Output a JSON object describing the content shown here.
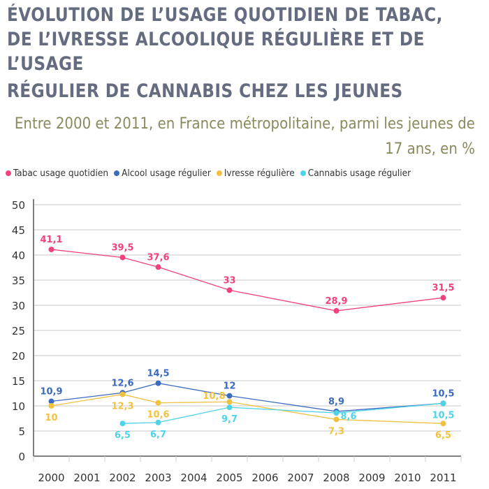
{
  "title_lines": [
    "ÉVOLUTION DE L’USAGE QUOTIDIEN DE TABAC,",
    "DE L’IVRESSE ALCOOLIQUE RÉGULIÈRE ET DE",
    "L’USAGE",
    "RÉGULIER DE CANNABIS CHEZ LES JEUNES"
  ],
  "subtitle": "Entre 2000 et 2011, en France métropolitaine, parmi les jeunes de 17 ans, en %",
  "colors": {
    "title": "#656c80",
    "subtitle": "#8a8a5c"
  },
  "chart_data": {
    "type": "line",
    "categories": [
      "2000",
      "2001",
      "2002",
      "2003",
      "2004",
      "2005",
      "2006",
      "2007",
      "2008",
      "2009",
      "2010",
      "2011"
    ],
    "ylim": [
      0,
      50
    ],
    "yticks": [
      0,
      5,
      10,
      15,
      20,
      25,
      30,
      35,
      40,
      45,
      50
    ],
    "grid": true,
    "legend": "top",
    "series": [
      {
        "name": "Tabac usage quotidien",
        "color": "#f0427e",
        "points": [
          {
            "x": "2000",
            "y": 41.1,
            "label": "41,1",
            "pos": "above"
          },
          {
            "x": "2002",
            "y": 39.5,
            "label": "39,5",
            "pos": "above"
          },
          {
            "x": "2003",
            "y": 37.6,
            "label": "37,6",
            "pos": "above"
          },
          {
            "x": "2005",
            "y": 33,
            "label": "33",
            "pos": "above"
          },
          {
            "x": "2008",
            "y": 28.9,
            "label": "28,9",
            "pos": "above"
          },
          {
            "x": "2011",
            "y": 31.5,
            "label": "31,5",
            "pos": "above"
          }
        ]
      },
      {
        "name": "Alcool usage régulier",
        "color": "#3a6bbf",
        "points": [
          {
            "x": "2000",
            "y": 10.9,
            "label": "10,9",
            "pos": "above"
          },
          {
            "x": "2002",
            "y": 12.6,
            "label": "12,6",
            "pos": "above"
          },
          {
            "x": "2003",
            "y": 14.5,
            "label": "14,5",
            "pos": "above"
          },
          {
            "x": "2005",
            "y": 12,
            "label": "12",
            "pos": "above"
          },
          {
            "x": "2008",
            "y": 8.9,
            "label": "8,9",
            "pos": "above"
          },
          {
            "x": "2011",
            "y": 10.5,
            "label": "10,5",
            "pos": "above"
          }
        ]
      },
      {
        "name": "Ivresse régulière",
        "color": "#f2c140",
        "points": [
          {
            "x": "2000",
            "y": 10,
            "label": "10",
            "pos": "below"
          },
          {
            "x": "2002",
            "y": 12.3,
            "label": "12,3",
            "pos": "below"
          },
          {
            "x": "2003",
            "y": 10.6,
            "label": "10,6",
            "pos": "below"
          },
          {
            "x": "2005",
            "y": 10.8,
            "label": "10,8",
            "pos": "left"
          },
          {
            "x": "2008",
            "y": 7.3,
            "label": "7,3",
            "pos": "below"
          },
          {
            "x": "2011",
            "y": 6.5,
            "label": "6,5",
            "pos": "below"
          }
        ]
      },
      {
        "name": "Cannabis usage régulier",
        "color": "#4fd3e8",
        "points": [
          {
            "x": "2002",
            "y": 6.5,
            "label": "6,5",
            "pos": "below"
          },
          {
            "x": "2003",
            "y": 6.7,
            "label": "6,7",
            "pos": "below"
          },
          {
            "x": "2005",
            "y": 9.7,
            "label": "9,7",
            "pos": "below"
          },
          {
            "x": "2008",
            "y": 8.6,
            "label": "8,6",
            "pos": "right"
          },
          {
            "x": "2011",
            "y": 10.5,
            "label": "10,5",
            "pos": "below"
          }
        ]
      }
    ]
  }
}
